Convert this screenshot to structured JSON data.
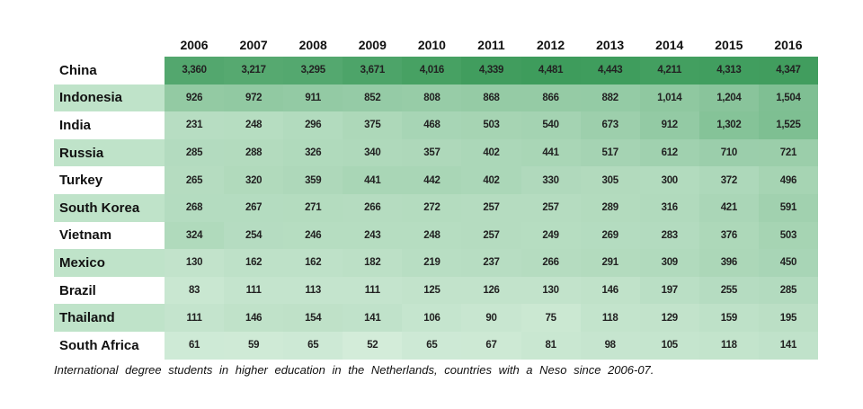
{
  "table": {
    "columns": [
      "2006",
      "2007",
      "2008",
      "2009",
      "2010",
      "2011",
      "2012",
      "2013",
      "2014",
      "2015",
      "2016"
    ],
    "rows": [
      {
        "label": "China",
        "cells": [
          "3,360",
          "3,217",
          "3,295",
          "3,671",
          "4,016",
          "4,339",
          "4,481",
          "4,443",
          "4,211",
          "4,313",
          "4,347"
        ]
      },
      {
        "label": "Indonesia",
        "cells": [
          "926",
          "972",
          "911",
          "852",
          "808",
          "868",
          "866",
          "882",
          "1,014",
          "1,204",
          "1,504"
        ]
      },
      {
        "label": "India",
        "cells": [
          "231",
          "248",
          "296",
          "375",
          "468",
          "503",
          "540",
          "673",
          "912",
          "1,302",
          "1,525"
        ]
      },
      {
        "label": "Russia",
        "cells": [
          "285",
          "288",
          "326",
          "340",
          "357",
          "402",
          "441",
          "517",
          "612",
          "710",
          "721"
        ]
      },
      {
        "label": "Turkey",
        "cells": [
          "265",
          "320",
          "359",
          "441",
          "442",
          "402",
          "330",
          "305",
          "300",
          "372",
          "496"
        ]
      },
      {
        "label": "South Korea",
        "cells": [
          "268",
          "267",
          "271",
          "266",
          "272",
          "257",
          "257",
          "289",
          "316",
          "421",
          "591"
        ]
      },
      {
        "label": "Vietnam",
        "cells": [
          "324",
          "254",
          "246",
          "243",
          "248",
          "257",
          "249",
          "269",
          "283",
          "376",
          "503"
        ]
      },
      {
        "label": "Mexico",
        "cells": [
          "130",
          "162",
          "162",
          "182",
          "219",
          "237",
          "266",
          "291",
          "309",
          "396",
          "450"
        ]
      },
      {
        "label": "Brazil",
        "cells": [
          "83",
          "111",
          "113",
          "111",
          "125",
          "126",
          "130",
          "146",
          "197",
          "255",
          "285"
        ]
      },
      {
        "label": "Thailand",
        "cells": [
          "111",
          "146",
          "154",
          "141",
          "106",
          "90",
          "75",
          "118",
          "129",
          "159",
          "195"
        ]
      },
      {
        "label": "South Africa",
        "cells": [
          "61",
          "59",
          "65",
          "52",
          "65",
          "67",
          "81",
          "98",
          "105",
          "118",
          "141"
        ]
      }
    ],
    "caption": "International degree students in higher education in the Netherlands, countries with a Neso since 2006-07."
  }
}
